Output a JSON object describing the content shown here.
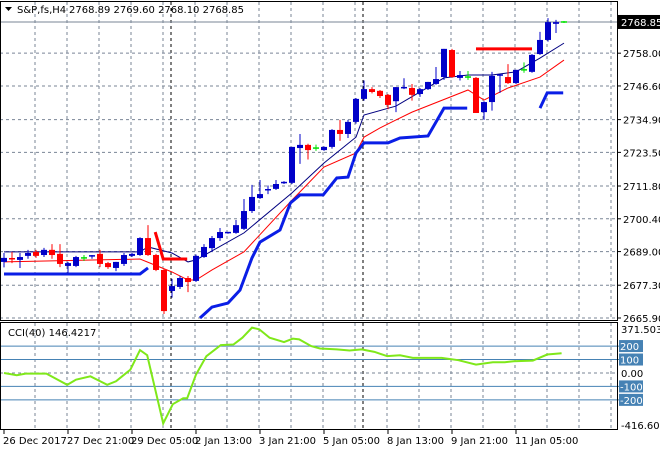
{
  "header": {
    "symbol": "S&P,fs,H4",
    "ohlc": "2768.89 2769.60 2768.10 2768.85",
    "menu_icon": "triangle-down-icon"
  },
  "colors": {
    "bull": "#0000c8",
    "bear": "#ff0000",
    "doji": "#00e000",
    "ma_fast": "#000080",
    "ma_slow": "#ff0000",
    "stop_blue": "#0a1ee6",
    "stop_red": "#ff0000",
    "cci": "#7fe81a",
    "cci_level": "#4682b4",
    "grid": "#7a8596"
  },
  "chart_data": [
    {
      "type": "candlestick",
      "title": "S&P,fs,H4",
      "current_price": "2768.85",
      "ylim": [
        2665.2,
        2775.8
      ],
      "y_ticks": [
        "2758.00",
        "2746.60",
        "2734.90",
        "2723.50",
        "2711.80",
        "2700.40",
        "2689.00",
        "2677.30",
        "2665.90"
      ],
      "grid": true,
      "x_labels": [
        {
          "bar": 0,
          "label": "26 Dec 2017"
        },
        {
          "bar": 8,
          "label": "27 Dec 21:00"
        },
        {
          "bar": 16,
          "label": "29 Dec 05:00"
        },
        {
          "bar": 24,
          "label": "2 Jan 13:00"
        },
        {
          "bar": 32,
          "label": "3 Jan 21:00"
        },
        {
          "bar": 40,
          "label": "5 Jan 05:00"
        },
        {
          "bar": 48,
          "label": "8 Jan 13:00"
        },
        {
          "bar": 56,
          "label": "9 Jan 21:00"
        },
        {
          "bar": 64,
          "label": "11 Jan 05:00"
        }
      ],
      "ohlc": [
        [
          2685.4,
          2688.5,
          2683.5,
          2686.8
        ],
        [
          2686.5,
          2688.9,
          2685.0,
          2686.1
        ],
        [
          2686.1,
          2688.5,
          2683.3,
          2687.1
        ],
        [
          2687.5,
          2689.6,
          2686.5,
          2688.5
        ],
        [
          2688.9,
          2689.6,
          2686.8,
          2687.5
        ],
        [
          2687.8,
          2690.3,
          2687.1,
          2689.6
        ],
        [
          2689.6,
          2691.6,
          2686.5,
          2687.8
        ],
        [
          2688.2,
          2691.6,
          2683.6,
          2684.7
        ],
        [
          2684.0,
          2685.4,
          2681.5,
          2685.0
        ],
        [
          2684.0,
          2687.5,
          2683.6,
          2687.1
        ],
        [
          2686.8,
          2687.8,
          2685.7,
          2686.8
        ],
        [
          2687.1,
          2687.8,
          2686.5,
          2687.5
        ],
        [
          2688.2,
          2689.6,
          2683.6,
          2684.7
        ],
        [
          2685.0,
          2685.4,
          2683.0,
          2683.6
        ],
        [
          2683.3,
          2685.4,
          2682.2,
          2685.4
        ],
        [
          2684.7,
          2688.5,
          2684.0,
          2687.8
        ],
        [
          2687.5,
          2688.5,
          2687.1,
          2688.2
        ],
        [
          2687.8,
          2694.0,
          2687.5,
          2693.7
        ],
        [
          2693.7,
          2698.2,
          2687.5,
          2687.8
        ],
        [
          2687.8,
          2688.2,
          2682.2,
          2682.6
        ],
        [
          2682.6,
          2683.0,
          2667.3,
          2668.3
        ],
        [
          2675.3,
          2679.5,
          2673.0,
          2677.0
        ],
        [
          2676.7,
          2680.5,
          2676.0,
          2679.8
        ],
        [
          2679.8,
          2680.5,
          2674.9,
          2678.4
        ],
        [
          2678.8,
          2688.0,
          2678.4,
          2687.5
        ],
        [
          2687.1,
          2691.6,
          2686.8,
          2690.6
        ],
        [
          2690.2,
          2694.4,
          2688.9,
          2693.7
        ],
        [
          2693.7,
          2697.2,
          2692.7,
          2695.8
        ],
        [
          2695.5,
          2695.8,
          2695.2,
          2695.6
        ],
        [
          2695.5,
          2700.0,
          2695.2,
          2698.2
        ],
        [
          2696.9,
          2707.3,
          2696.5,
          2703.1
        ],
        [
          2703.1,
          2712.2,
          2702.4,
          2708.0
        ],
        [
          2707.6,
          2713.9,
          2707.3,
          2709.0
        ],
        [
          2710.4,
          2712.0,
          2709.0,
          2710.5
        ],
        [
          2710.8,
          2713.9,
          2710.4,
          2712.5
        ],
        [
          2712.9,
          2713.5,
          2712.5,
          2713.0
        ],
        [
          2712.9,
          2725.4,
          2712.5,
          2725.4
        ],
        [
          2725.0,
          2729.9,
          2719.5,
          2726.1
        ],
        [
          2726.1,
          2726.5,
          2721.0,
          2724.3
        ],
        [
          2725.0,
          2726.2,
          2724.0,
          2725.0
        ],
        [
          2724.3,
          2725.6,
          2724.0,
          2725.4
        ],
        [
          2725.4,
          2731.6,
          2724.8,
          2731.3
        ],
        [
          2731.3,
          2734.8,
          2727.5,
          2729.9
        ],
        [
          2729.9,
          2734.8,
          2728.5,
          2734.1
        ],
        [
          2734.1,
          2742.4,
          2733.5,
          2742.1
        ],
        [
          2742.1,
          2748.5,
          2741.5,
          2745.5
        ],
        [
          2745.5,
          2746.2,
          2744.0,
          2744.5
        ],
        [
          2744.9,
          2745.2,
          2742.4,
          2743.1
        ],
        [
          2743.5,
          2743.8,
          2738.5,
          2740.0
        ],
        [
          2741.3,
          2746.2,
          2737.5,
          2746.2
        ],
        [
          2745.9,
          2749.3,
          2745.5,
          2746.0
        ],
        [
          2745.9,
          2747.3,
          2741.5,
          2743.5
        ],
        [
          2743.8,
          2745.9,
          2742.8,
          2745.5
        ],
        [
          2745.5,
          2748.0,
          2745.2,
          2748.0
        ],
        [
          2747.3,
          2753.2,
          2747.0,
          2749.0
        ],
        [
          2749.7,
          2759.5,
          2748.7,
          2759.5
        ],
        [
          2759.1,
          2759.5,
          2749.4,
          2749.7
        ],
        [
          2749.4,
          2751.8,
          2748.5,
          2750.4
        ],
        [
          2749.7,
          2751.8,
          2748.7,
          2749.7
        ],
        [
          2749.4,
          2749.7,
          2737.2,
          2737.2
        ],
        [
          2737.5,
          2741.3,
          2734.8,
          2741.0
        ],
        [
          2741.0,
          2751.5,
          2738.0,
          2750.1
        ],
        [
          2750.1,
          2750.4,
          2744.2,
          2750.4
        ],
        [
          2749.7,
          2754.2,
          2747.3,
          2747.6
        ],
        [
          2747.6,
          2752.2,
          2747.3,
          2752.2
        ],
        [
          2752.2,
          2754.8,
          2751.2,
          2752.2
        ],
        [
          2751.5,
          2757.7,
          2751.2,
          2757.4
        ],
        [
          2757.7,
          2765.4,
          2757.4,
          2762.6
        ],
        [
          2762.6,
          2770.2,
          2762.0,
          2768.8
        ],
        [
          2768.2,
          2769.6,
          2765.0,
          2768.8
        ],
        [
          2768.85,
          2769.2,
          2768.5,
          2768.85
        ]
      ],
      "overlays": [
        {
          "kind": "ma_fast",
          "points": [
            [
              0,
              2688.9
            ],
            [
              17,
              2688.9
            ],
            [
              18,
              2690.6
            ],
            [
              21,
              2688.5
            ],
            [
              23,
              2685.4
            ],
            [
              24,
              2686.1
            ],
            [
              30,
              2695.5
            ],
            [
              36,
              2709.4
            ],
            [
              40,
              2719.8
            ],
            [
              44,
              2728.8
            ],
            [
              45,
              2736.5
            ],
            [
              49,
              2739.6
            ],
            [
              55,
              2749.4
            ],
            [
              58,
              2750.4
            ],
            [
              61,
              2750.4
            ],
            [
              64,
              2751.5
            ],
            [
              67,
              2756.3
            ],
            [
              70,
              2761.5
            ]
          ]
        },
        {
          "kind": "ma_slow",
          "points": [
            [
              0,
              2685.4
            ],
            [
              17,
              2686.4
            ],
            [
              21,
              2681.9
            ],
            [
              23,
              2679.1
            ],
            [
              24,
              2679.1
            ],
            [
              26,
              2682.6
            ],
            [
              30,
              2688.9
            ],
            [
              36,
              2706.9
            ],
            [
              40,
              2718.4
            ],
            [
              44,
              2723.3
            ],
            [
              45,
              2728.8
            ],
            [
              47,
              2732.0
            ],
            [
              49,
              2734.8
            ],
            [
              51,
              2737.5
            ],
            [
              58,
              2745.2
            ],
            [
              60,
              2741.7
            ],
            [
              63,
              2745.9
            ],
            [
              67,
              2749.7
            ],
            [
              70,
              2755.6
            ]
          ]
        },
        {
          "kind": "stop_blue",
          "points": [
            [
              0,
              2681.2
            ],
            [
              17,
              2681.2
            ],
            [
              18,
              2683.3
            ]
          ]
        },
        {
          "kind": "stop_blue",
          "points": [
            [
              24.5,
              2665.9
            ],
            [
              26,
              2669.7
            ],
            [
              28,
              2671.1
            ],
            [
              29.5,
              2675.6
            ],
            [
              31,
              2686.8
            ],
            [
              32,
              2692.3
            ],
            [
              34.5,
              2696.5
            ],
            [
              35.8,
              2705.9
            ],
            [
              37,
              2708.7
            ],
            [
              39.9,
              2708.7
            ],
            [
              41.6,
              2714.6
            ],
            [
              43,
              2714.9
            ],
            [
              44,
              2723.3
            ],
            [
              45,
              2726.8
            ],
            [
              48,
              2726.8
            ],
            [
              49.5,
              2728.5
            ],
            [
              53,
              2729.2
            ],
            [
              55,
              2738.9
            ],
            [
              57.9,
              2738.9
            ]
          ]
        },
        {
          "kind": "stop_blue",
          "points": [
            [
              67,
              2738.9
            ],
            [
              67.9,
              2744.2
            ],
            [
              69.9,
              2744.2
            ]
          ]
        },
        {
          "kind": "stop_red",
          "points": [
            [
              18.9,
              2695.8
            ],
            [
              19.9,
              2686.4
            ],
            [
              22.9,
              2686.4
            ]
          ]
        },
        {
          "kind": "stop_red",
          "points": [
            [
              59,
              2759.5
            ],
            [
              66,
              2759.5
            ]
          ]
        }
      ]
    },
    {
      "type": "line",
      "title": "CCI(40) 146.4217",
      "ylim": [
        -416.6083,
        371.5039
      ],
      "y_ticks": [
        "371.5039",
        "0.00",
        "-416.6083"
      ],
      "levels": [
        200,
        100,
        -100,
        -200
      ],
      "level_labels": [
        "200",
        "100",
        "-100",
        "-200"
      ],
      "points": [
        [
          0,
          0
        ],
        [
          1.6,
          -17
        ],
        [
          2.7,
          -5
        ],
        [
          5.3,
          -5
        ],
        [
          7.9,
          -88
        ],
        [
          9,
          -50
        ],
        [
          10.8,
          -25
        ],
        [
          12.9,
          -88
        ],
        [
          14,
          -62
        ],
        [
          15.8,
          25
        ],
        [
          17,
          170
        ],
        [
          17.9,
          132
        ],
        [
          19.9,
          -375
        ],
        [
          21.1,
          -232
        ],
        [
          22.4,
          -188
        ],
        [
          22.9,
          -188
        ],
        [
          24,
          -12
        ],
        [
          25.3,
          125
        ],
        [
          27.1,
          207
        ],
        [
          28.7,
          212
        ],
        [
          29.8,
          262
        ],
        [
          31,
          337
        ],
        [
          31.9,
          325
        ],
        [
          33.2,
          262
        ],
        [
          35,
          230
        ],
        [
          36.1,
          255
        ],
        [
          36.9,
          250
        ],
        [
          38.4,
          200
        ],
        [
          39.5,
          182
        ],
        [
          41.6,
          175
        ],
        [
          43.2,
          167
        ],
        [
          44.7,
          175
        ],
        [
          46.3,
          157
        ],
        [
          47.9,
          125
        ],
        [
          49.5,
          132
        ],
        [
          51.1,
          112
        ],
        [
          54.7,
          112
        ],
        [
          56.8,
          95
        ],
        [
          59,
          62
        ],
        [
          61.1,
          80
        ],
        [
          62.6,
          80
        ],
        [
          63.7,
          87
        ],
        [
          66.1,
          92
        ],
        [
          67.9,
          137
        ],
        [
          69.7,
          146.4217
        ]
      ]
    }
  ]
}
